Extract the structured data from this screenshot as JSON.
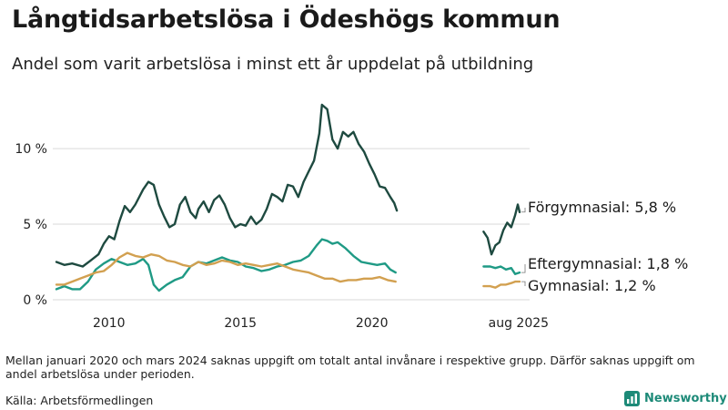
{
  "header": {
    "title": "Långtidsarbetslösa i Ödeshögs kommun",
    "subtitle": "Andel som varit arbetslösa i minst ett år uppdelat på utbildning"
  },
  "footer": {
    "note": "Mellan januari 2020 och mars 2024 saknas uppgift om totalt antal invånare i respektive grupp. Därför saknas uppgift om andel arbetslösa under perioden.",
    "source": "Källa: Arbetsförmedlingen",
    "brand": "Newsworthy",
    "brand_icon": "newsworthy-logo-icon"
  },
  "colors": {
    "forgymnasial": "#1e4a40",
    "eftergymnasial": "#1f9a85",
    "gymnasial": "#d2a050",
    "grid": "#d9d9d9"
  },
  "chart_data": {
    "type": "line",
    "title": "Långtidsarbetslösa i Ödeshögs kommun",
    "subtitle": "Andel som varit arbetslösa i minst ett år uppdelat på utbildning",
    "y_unit": "%",
    "ylim": [
      0,
      13.5
    ],
    "y_ticks": [
      {
        "value": 0,
        "label": "0 %"
      },
      {
        "value": 5,
        "label": "5 %"
      },
      {
        "value": 10,
        "label": "10 %"
      }
    ],
    "xlim": [
      2008.0,
      2026.0
    ],
    "x_ticks": [
      {
        "value": 2010,
        "label": "2010"
      },
      {
        "value": 2015,
        "label": "2015"
      },
      {
        "value": 2020,
        "label": "2020"
      },
      {
        "value": 2025.58,
        "label": "aug 2025"
      }
    ],
    "grid": "horizontal",
    "gap": {
      "from": "2020-01",
      "to": "2024-03"
    },
    "series": [
      {
        "name": "Förgymnasial",
        "label": "Förgymnasial: 5,8 %",
        "last_value": 5.8,
        "segments": [
          [
            [
              2008.0,
              2.5
            ],
            [
              2008.3,
              2.3
            ],
            [
              2008.6,
              2.4
            ],
            [
              2009.0,
              2.2
            ],
            [
              2009.3,
              2.6
            ],
            [
              2009.6,
              3.0
            ],
            [
              2009.8,
              3.7
            ],
            [
              2010.0,
              4.2
            ],
            [
              2010.2,
              4.0
            ],
            [
              2010.4,
              5.2
            ],
            [
              2010.6,
              6.2
            ],
            [
              2010.8,
              5.8
            ],
            [
              2011.0,
              6.3
            ],
            [
              2011.3,
              7.3
            ],
            [
              2011.5,
              7.8
            ],
            [
              2011.7,
              7.6
            ],
            [
              2011.9,
              6.3
            ],
            [
              2012.1,
              5.5
            ],
            [
              2012.3,
              4.8
            ],
            [
              2012.5,
              5.0
            ],
            [
              2012.7,
              6.3
            ],
            [
              2012.9,
              6.8
            ],
            [
              2013.1,
              5.8
            ],
            [
              2013.3,
              5.4
            ],
            [
              2013.4,
              6.0
            ],
            [
              2013.6,
              6.5
            ],
            [
              2013.8,
              5.8
            ],
            [
              2014.0,
              6.6
            ],
            [
              2014.2,
              6.9
            ],
            [
              2014.4,
              6.3
            ],
            [
              2014.6,
              5.4
            ],
            [
              2014.8,
              4.8
            ],
            [
              2015.0,
              5.0
            ],
            [
              2015.2,
              4.9
            ],
            [
              2015.4,
              5.5
            ],
            [
              2015.6,
              5.0
            ],
            [
              2015.8,
              5.3
            ],
            [
              2016.0,
              6.0
            ],
            [
              2016.2,
              7.0
            ],
            [
              2016.4,
              6.8
            ],
            [
              2016.6,
              6.5
            ],
            [
              2016.8,
              7.6
            ],
            [
              2017.0,
              7.5
            ],
            [
              2017.2,
              6.8
            ],
            [
              2017.4,
              7.8
            ],
            [
              2017.6,
              8.5
            ],
            [
              2017.8,
              9.2
            ],
            [
              2018.0,
              11.0
            ],
            [
              2018.1,
              12.9
            ],
            [
              2018.3,
              12.6
            ],
            [
              2018.5,
              10.6
            ],
            [
              2018.7,
              10.0
            ],
            [
              2018.9,
              11.1
            ],
            [
              2019.1,
              10.8
            ],
            [
              2019.3,
              11.1
            ],
            [
              2019.5,
              10.3
            ],
            [
              2019.7,
              9.8
            ],
            [
              2019.9,
              9.0
            ],
            [
              2020.1,
              8.3
            ],
            [
              2020.3,
              7.5
            ],
            [
              2020.5,
              7.4
            ],
            [
              2020.7,
              6.8
            ],
            [
              2020.85,
              6.4
            ],
            [
              2020.95,
              5.9
            ]
          ],
          [
            [
              2024.25,
              4.5
            ],
            [
              2024.4,
              4.1
            ],
            [
              2024.55,
              3.0
            ],
            [
              2024.7,
              3.6
            ],
            [
              2024.85,
              3.8
            ],
            [
              2025.0,
              4.6
            ],
            [
              2025.15,
              5.1
            ],
            [
              2025.3,
              4.8
            ],
            [
              2025.45,
              5.6
            ],
            [
              2025.55,
              6.3
            ],
            [
              2025.62,
              5.8
            ]
          ]
        ]
      },
      {
        "name": "Eftergymnasial",
        "label": "Eftergymnasial: 1,8 %",
        "last_value": 1.8,
        "segments": [
          [
            [
              2008.0,
              0.7
            ],
            [
              2008.3,
              0.9
            ],
            [
              2008.6,
              0.7
            ],
            [
              2008.9,
              0.7
            ],
            [
              2009.2,
              1.2
            ],
            [
              2009.5,
              2.0
            ],
            [
              2009.8,
              2.4
            ],
            [
              2010.1,
              2.7
            ],
            [
              2010.4,
              2.5
            ],
            [
              2010.7,
              2.3
            ],
            [
              2011.0,
              2.4
            ],
            [
              2011.3,
              2.7
            ],
            [
              2011.5,
              2.3
            ],
            [
              2011.7,
              1.0
            ],
            [
              2011.9,
              0.6
            ],
            [
              2012.2,
              1.0
            ],
            [
              2012.5,
              1.3
            ],
            [
              2012.8,
              1.5
            ],
            [
              2013.1,
              2.2
            ],
            [
              2013.4,
              2.5
            ],
            [
              2013.7,
              2.4
            ],
            [
              2014.0,
              2.6
            ],
            [
              2014.3,
              2.8
            ],
            [
              2014.6,
              2.6
            ],
            [
              2014.9,
              2.5
            ],
            [
              2015.2,
              2.2
            ],
            [
              2015.5,
              2.1
            ],
            [
              2015.8,
              1.9
            ],
            [
              2016.1,
              2.0
            ],
            [
              2016.4,
              2.2
            ],
            [
              2016.7,
              2.3
            ],
            [
              2017.0,
              2.5
            ],
            [
              2017.3,
              2.6
            ],
            [
              2017.6,
              2.9
            ],
            [
              2017.9,
              3.6
            ],
            [
              2018.1,
              4.0
            ],
            [
              2018.3,
              3.9
            ],
            [
              2018.5,
              3.7
            ],
            [
              2018.7,
              3.8
            ],
            [
              2019.0,
              3.4
            ],
            [
              2019.3,
              2.9
            ],
            [
              2019.6,
              2.5
            ],
            [
              2019.9,
              2.4
            ],
            [
              2020.2,
              2.3
            ],
            [
              2020.5,
              2.4
            ],
            [
              2020.7,
              2.0
            ],
            [
              2020.9,
              1.8
            ]
          ],
          [
            [
              2024.25,
              2.2
            ],
            [
              2024.5,
              2.2
            ],
            [
              2024.7,
              2.1
            ],
            [
              2024.9,
              2.2
            ],
            [
              2025.1,
              2.0
            ],
            [
              2025.3,
              2.1
            ],
            [
              2025.45,
              1.7
            ],
            [
              2025.62,
              1.8
            ]
          ]
        ]
      },
      {
        "name": "Gymnasial",
        "label": "Gymnasial: 1,2 %",
        "last_value": 1.2,
        "segments": [
          [
            [
              2008.0,
              1.0
            ],
            [
              2008.3,
              1.0
            ],
            [
              2008.6,
              1.2
            ],
            [
              2008.9,
              1.4
            ],
            [
              2009.2,
              1.6
            ],
            [
              2009.5,
              1.8
            ],
            [
              2009.8,
              1.9
            ],
            [
              2010.1,
              2.3
            ],
            [
              2010.4,
              2.8
            ],
            [
              2010.7,
              3.1
            ],
            [
              2011.0,
              2.9
            ],
            [
              2011.3,
              2.8
            ],
            [
              2011.6,
              3.0
            ],
            [
              2011.9,
              2.9
            ],
            [
              2012.2,
              2.6
            ],
            [
              2012.5,
              2.5
            ],
            [
              2012.8,
              2.3
            ],
            [
              2013.1,
              2.2
            ],
            [
              2013.4,
              2.5
            ],
            [
              2013.7,
              2.3
            ],
            [
              2014.0,
              2.4
            ],
            [
              2014.3,
              2.6
            ],
            [
              2014.6,
              2.5
            ],
            [
              2014.9,
              2.3
            ],
            [
              2015.2,
              2.4
            ],
            [
              2015.5,
              2.3
            ],
            [
              2015.8,
              2.2
            ],
            [
              2016.1,
              2.3
            ],
            [
              2016.4,
              2.4
            ],
            [
              2016.7,
              2.2
            ],
            [
              2017.0,
              2.0
            ],
            [
              2017.3,
              1.9
            ],
            [
              2017.6,
              1.8
            ],
            [
              2017.9,
              1.6
            ],
            [
              2018.2,
              1.4
            ],
            [
              2018.5,
              1.4
            ],
            [
              2018.8,
              1.2
            ],
            [
              2019.1,
              1.3
            ],
            [
              2019.4,
              1.3
            ],
            [
              2019.7,
              1.4
            ],
            [
              2020.0,
              1.4
            ],
            [
              2020.3,
              1.5
            ],
            [
              2020.6,
              1.3
            ],
            [
              2020.9,
              1.2
            ]
          ],
          [
            [
              2024.25,
              0.9
            ],
            [
              2024.5,
              0.9
            ],
            [
              2024.7,
              0.8
            ],
            [
              2024.9,
              1.0
            ],
            [
              2025.1,
              1.0
            ],
            [
              2025.3,
              1.1
            ],
            [
              2025.45,
              1.2
            ],
            [
              2025.62,
              1.2
            ]
          ]
        ]
      }
    ]
  }
}
